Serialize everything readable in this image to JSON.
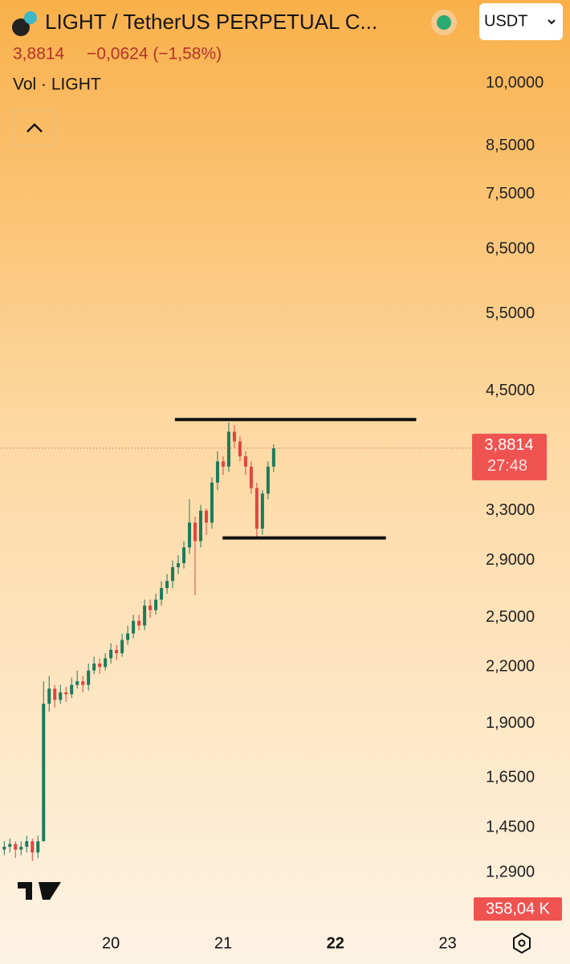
{
  "header": {
    "title": "LIGHT / TetherUS PERPETUAL C...",
    "price": "3,8814",
    "change": "−0,0624 (−1,58%)",
    "volume_label": "Vol · LIGHT",
    "currency": "USDT"
  },
  "chart_data": {
    "type": "candlestick",
    "log_scale": true,
    "up_color": "#1f7a5c",
    "down_color": "#e0463f",
    "x": [
      19.05,
      19.1,
      19.15,
      19.2,
      19.25,
      19.3,
      19.35,
      19.4,
      19.45,
      19.5,
      19.55,
      19.6,
      19.65,
      19.7,
      19.75,
      19.8,
      19.85,
      19.9,
      19.95,
      20.0,
      20.05,
      20.1,
      20.15,
      20.2,
      20.25,
      20.3,
      20.35,
      20.4,
      20.45,
      20.5,
      20.55,
      20.6,
      20.65,
      20.7,
      20.75,
      20.8,
      20.85,
      20.9,
      20.95,
      21.0,
      21.05,
      21.1,
      21.15,
      21.2,
      21.25,
      21.3,
      21.35,
      21.4,
      21.45
    ],
    "open": [
      1.37,
      1.38,
      1.39,
      1.37,
      1.38,
      1.4,
      1.36,
      1.4,
      2.0,
      2.08,
      2.02,
      2.06,
      2.05,
      2.1,
      2.12,
      2.1,
      2.18,
      2.22,
      2.2,
      2.25,
      2.3,
      2.28,
      2.36,
      2.4,
      2.48,
      2.45,
      2.58,
      2.55,
      2.62,
      2.7,
      2.75,
      2.85,
      2.88,
      3.0,
      3.2,
      3.05,
      3.3,
      3.2,
      3.55,
      3.75,
      3.7,
      4.05,
      3.95,
      3.8,
      3.7,
      3.5,
      3.15,
      3.45,
      3.7
    ],
    "high": [
      1.4,
      1.41,
      1.4,
      1.4,
      1.42,
      1.41,
      1.42,
      2.12,
      2.15,
      2.1,
      2.1,
      2.09,
      2.14,
      2.18,
      2.15,
      2.22,
      2.26,
      2.25,
      2.28,
      2.34,
      2.33,
      2.4,
      2.45,
      2.52,
      2.52,
      2.62,
      2.62,
      2.66,
      2.75,
      2.8,
      2.9,
      2.94,
      3.05,
      3.4,
      3.25,
      3.35,
      3.32,
      3.6,
      3.85,
      3.8,
      4.15,
      4.12,
      4.0,
      3.85,
      3.75,
      3.55,
      3.48,
      3.75,
      3.92
    ],
    "low": [
      1.35,
      1.36,
      1.34,
      1.35,
      1.36,
      1.33,
      1.34,
      1.4,
      1.96,
      1.98,
      2.0,
      2.01,
      2.03,
      2.08,
      2.06,
      2.07,
      2.16,
      2.16,
      2.18,
      2.22,
      2.24,
      2.26,
      2.33,
      2.37,
      2.42,
      2.42,
      2.5,
      2.52,
      2.58,
      2.66,
      2.7,
      2.8,
      2.84,
      2.95,
      2.65,
      3.0,
      3.1,
      3.15,
      3.48,
      3.62,
      3.65,
      3.88,
      3.75,
      3.62,
      3.45,
      3.08,
      3.1,
      3.4,
      3.65
    ],
    "close": [
      1.38,
      1.39,
      1.37,
      1.38,
      1.4,
      1.36,
      1.4,
      2.0,
      2.08,
      2.02,
      2.06,
      2.05,
      2.1,
      2.12,
      2.1,
      2.18,
      2.22,
      2.2,
      2.25,
      2.3,
      2.28,
      2.36,
      2.4,
      2.48,
      2.45,
      2.58,
      2.55,
      2.62,
      2.7,
      2.75,
      2.85,
      2.88,
      3.0,
      3.2,
      3.05,
      3.3,
      3.2,
      3.55,
      3.75,
      3.7,
      4.05,
      3.95,
      3.8,
      3.7,
      3.5,
      3.15,
      3.45,
      3.7,
      3.88
    ],
    "ylim": [
      1.13,
      11
    ],
    "yticks": [
      {
        "value": 10,
        "label": "10,0000"
      },
      {
        "value": 8.5,
        "label": "8,5000"
      },
      {
        "value": 7.5,
        "label": "7,5000"
      },
      {
        "value": 6.5,
        "label": "6,5000"
      },
      {
        "value": 5.5,
        "label": "5,5000"
      },
      {
        "value": 4.5,
        "label": "4,5000"
      },
      {
        "value": 3.3,
        "label": "3,3000"
      },
      {
        "value": 2.9,
        "label": "2,9000"
      },
      {
        "value": 2.5,
        "label": "2,5000"
      },
      {
        "value": 2.2,
        "label": "2,2000"
      },
      {
        "value": 1.9,
        "label": "1,9000"
      },
      {
        "value": 1.65,
        "label": "1,6500"
      },
      {
        "value": 1.45,
        "label": "1,4500"
      },
      {
        "value": 1.29,
        "label": "1,2900"
      }
    ],
    "xlim": [
      19.012,
      24.09
    ],
    "xticks": [
      20,
      21,
      22,
      23
    ],
    "last_price": {
      "value": 3.8814,
      "label": "3,8814"
    },
    "countdown": "27:48",
    "last_volume": "358,04 K",
    "drawn_lines": [
      {
        "price": 4.18,
        "x": [
          20.57,
          22.72
        ]
      },
      {
        "price": 3.075,
        "x": [
          20.995,
          22.45
        ]
      }
    ]
  }
}
